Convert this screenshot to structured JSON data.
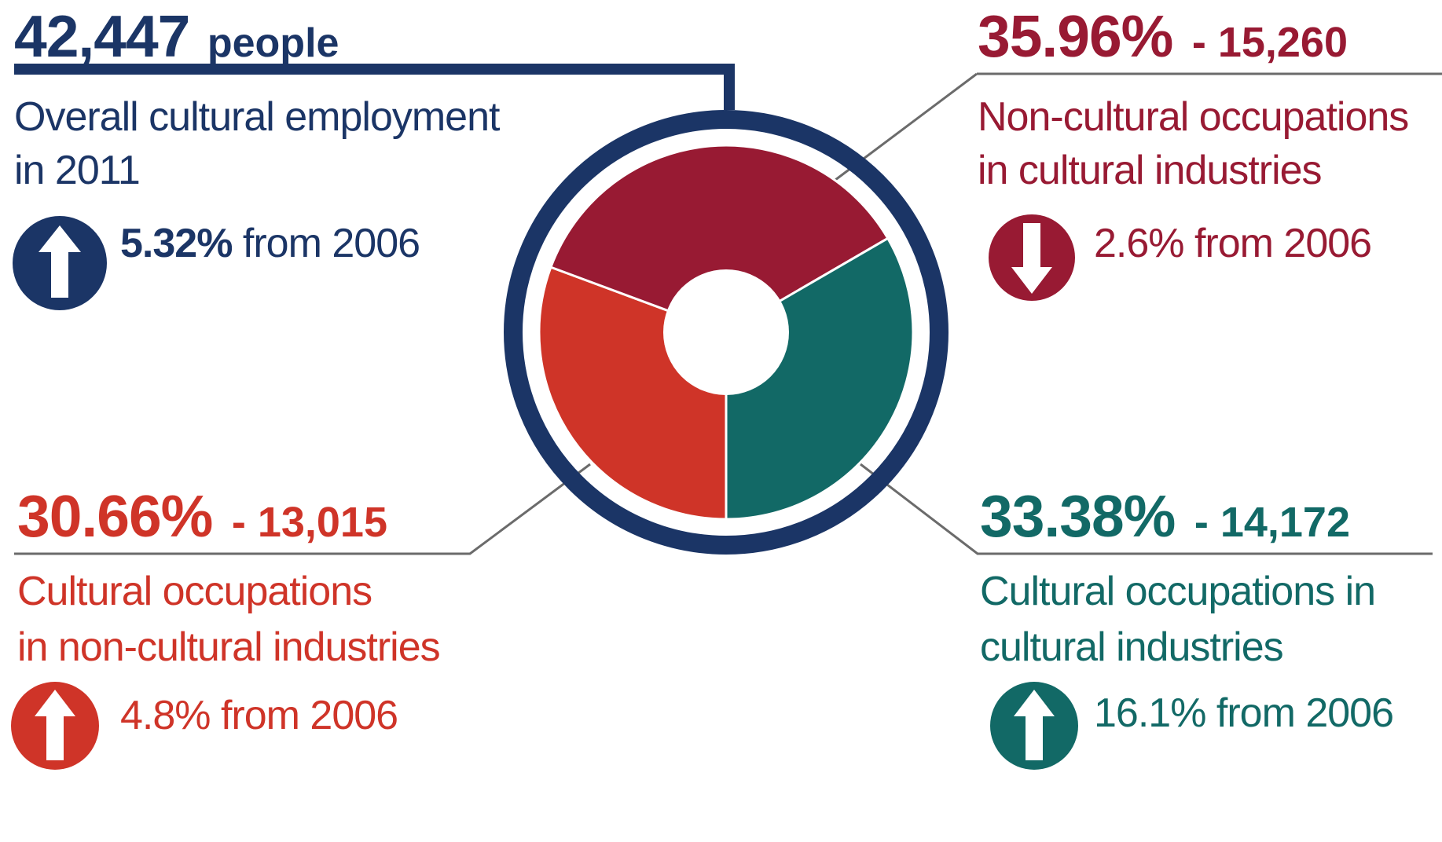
{
  "colors": {
    "navy": "#1b3566",
    "crimson": "#981a33",
    "red": "#cf3428",
    "teal": "#126966",
    "gray": "#6b6b6b",
    "white": "#ffffff"
  },
  "overall": {
    "count": "42,447",
    "unit": "people",
    "desc_line1": "Overall cultural employment",
    "desc_line2": "in 2011",
    "change_bold": "5.32%",
    "change_rest": " from 2006",
    "arrow": "up-arrow-icon"
  },
  "callouts": {
    "noncultural_occ_cultural_ind": {
      "percent": "35.96%",
      "count": "- 15,260",
      "desc_line1": "Non-cultural occupations",
      "desc_line2": "in cultural industries",
      "change": "2.6% from 2006",
      "arrow": "down-arrow-icon"
    },
    "cultural_occ_noncultural_ind": {
      "percent": "30.66%",
      "count": "- 13,015",
      "desc_line1": "Cultural occupations",
      "desc_line2": "in non-cultural industries",
      "change": "4.8% from 2006",
      "arrow": "up-arrow-icon"
    },
    "cultural_occ_cultural_ind": {
      "percent": "33.38%",
      "count": "- 14,172",
      "desc_line1": "Cultural occupations in",
      "desc_line2": "cultural industries",
      "change": "16.1% from 2006",
      "arrow": "up-arrow-icon"
    }
  },
  "chart_data": {
    "type": "pie",
    "variant": "donut",
    "total": 42447,
    "slices": [
      {
        "label": "Non-cultural occupations in cultural industries",
        "percent": 35.96,
        "count": 15260,
        "color": "#981a33"
      },
      {
        "label": "Cultural occupations in cultural industries",
        "percent": 33.38,
        "count": 14172,
        "color": "#126966"
      },
      {
        "label": "Cultural occupations in non-cultural industries",
        "percent": 30.66,
        "count": 13015,
        "color": "#cf3428"
      }
    ]
  }
}
